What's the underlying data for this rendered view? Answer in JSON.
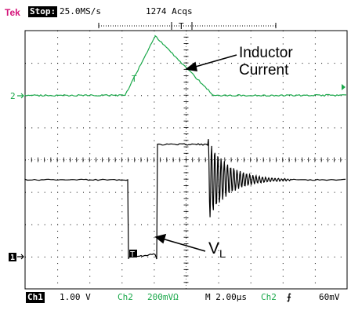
{
  "header": {
    "brand": "Tek",
    "state": "Stop:",
    "sample_rate": "25.0MS/s",
    "acquisitions": "1274 Acqs"
  },
  "footer": {
    "ch1_tag": "Ch1",
    "ch1_scale": "1.00 V",
    "ch2_tag": "Ch2",
    "ch2_scale": "200mVΩ",
    "timebase": "M 2.00µs",
    "trigger_source": "Ch2",
    "trigger_slope": "⨍",
    "trigger_level": "60mV"
  },
  "annotations": {
    "inductor_line1": "Inductor",
    "inductor_line2": "Current",
    "vl_main": "V",
    "vl_sub": "L"
  },
  "markers": {
    "ch2_marker": "2",
    "ch1_marker": "1",
    "trigger_marker": "T"
  },
  "colors": {
    "brand": "#d4147a",
    "channel2": "#1aa84a",
    "channel1": "#000000",
    "grid": "#000000"
  }
}
